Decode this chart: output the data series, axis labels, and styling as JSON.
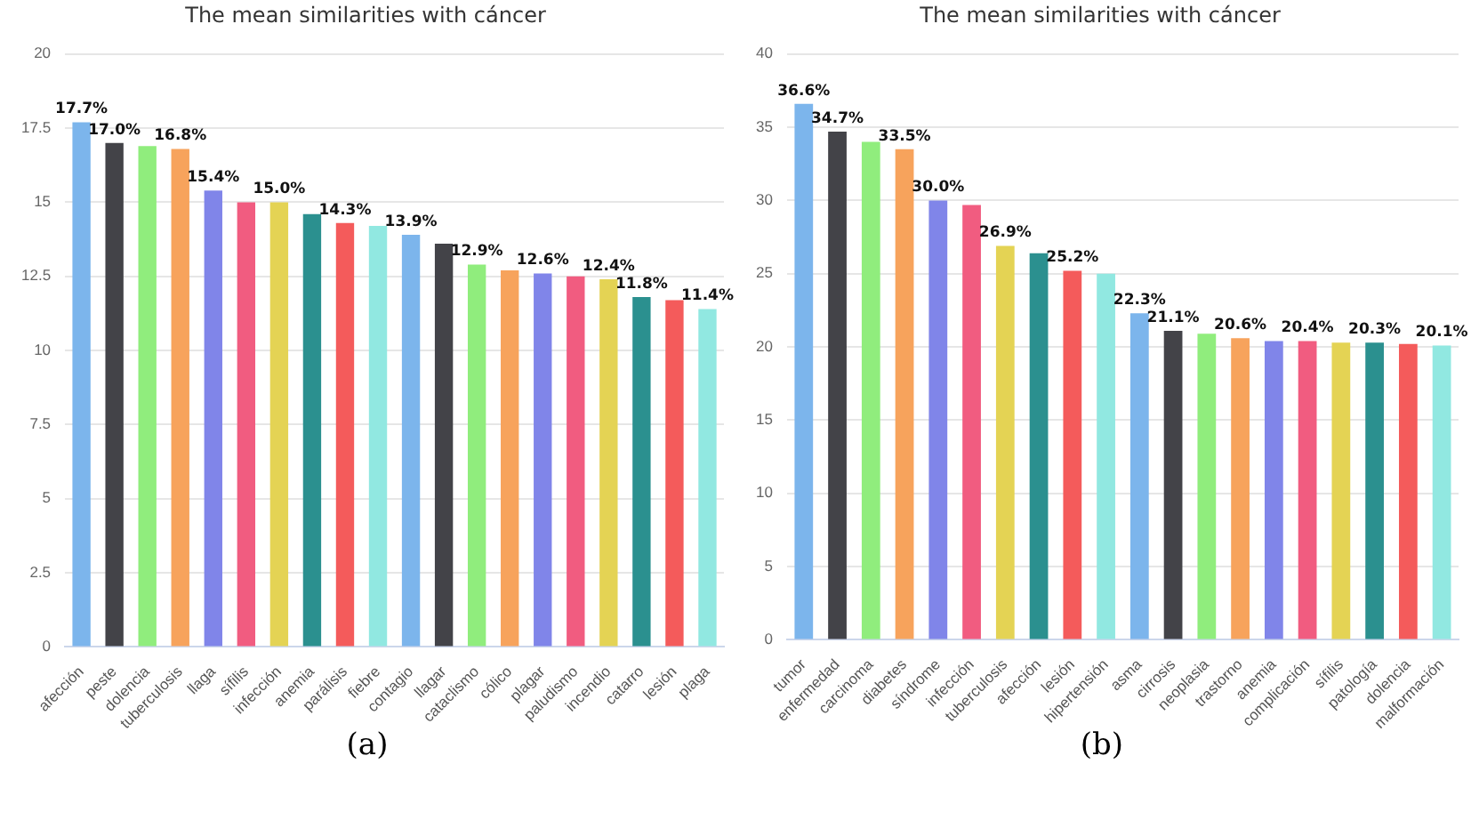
{
  "chart_data": [
    {
      "type": "bar",
      "title": "The mean similarities with cáncer",
      "categories": [
        "afección",
        "peste",
        "dolencia",
        "tuberculosis",
        "llaga",
        "sífilis",
        "infección",
        "anemia",
        "parálisis",
        "fiebre",
        "contagio",
        "llagar",
        "cataclismo",
        "cólico",
        "plagar",
        "paludismo",
        "incendio",
        "catarro",
        "lesión",
        "plaga"
      ],
      "values": [
        17.7,
        17.0,
        16.9,
        16.8,
        15.4,
        15.0,
        15.0,
        14.6,
        14.3,
        14.2,
        13.9,
        13.6,
        12.9,
        12.7,
        12.6,
        12.5,
        12.4,
        11.8,
        11.7,
        11.4
      ],
      "colors": [
        "#7cb5ec",
        "#434348",
        "#90ed7d",
        "#f7a35c",
        "#8085e9",
        "#f15c80",
        "#e4d354",
        "#2b908f",
        "#f45b5b",
        "#91e8e1",
        "#7cb5ec",
        "#434348",
        "#90ed7d",
        "#f7a35c",
        "#8085e9",
        "#f15c80",
        "#e4d354",
        "#2b908f",
        "#f45b5b",
        "#91e8e1"
      ],
      "value_labels": [
        "17.7%",
        "17.0%",
        null,
        "16.8%",
        "15.4%",
        null,
        "15.0%",
        null,
        "14.3%",
        null,
        "13.9%",
        null,
        "12.9%",
        null,
        "12.6%",
        null,
        "12.4%",
        "11.8%",
        null,
        "11.4%"
      ],
      "ylim": [
        0,
        20
      ],
      "yticks": [
        0,
        2.5,
        5,
        7.5,
        10,
        12.5,
        15,
        17.5,
        20
      ],
      "grid": "y",
      "legend": false,
      "annotations": [
        "(a)"
      ]
    },
    {
      "type": "bar",
      "title": "The mean similarities with cáncer",
      "categories": [
        "tumor",
        "enfermedad",
        "carcinoma",
        "diabetes",
        "síndrome",
        "infección",
        "tuberculosis",
        "afección",
        "lesión",
        "hipertensión",
        "asma",
        "cirrosis",
        "neoplasia",
        "trastorno",
        "anemia",
        "complicación",
        "sífilis",
        "patología",
        "dolencia",
        "malformación"
      ],
      "values": [
        36.6,
        34.7,
        34.0,
        33.5,
        30.0,
        29.7,
        26.9,
        26.4,
        25.2,
        25.0,
        22.3,
        21.1,
        20.9,
        20.6,
        20.4,
        20.4,
        20.3,
        20.3,
        20.2,
        20.1
      ],
      "colors": [
        "#7cb5ec",
        "#434348",
        "#90ed7d",
        "#f7a35c",
        "#8085e9",
        "#f15c80",
        "#e4d354",
        "#2b908f",
        "#f45b5b",
        "#91e8e1",
        "#7cb5ec",
        "#434348",
        "#90ed7d",
        "#f7a35c",
        "#8085e9",
        "#f15c80",
        "#e4d354",
        "#2b908f",
        "#f45b5b",
        "#91e8e1"
      ],
      "value_labels": [
        "36.6%",
        "34.7%",
        null,
        "33.5%",
        "30.0%",
        null,
        "26.9%",
        null,
        "25.2%",
        null,
        "22.3%",
        "21.1%",
        null,
        "20.6%",
        null,
        "20.4%",
        null,
        "20.3%",
        null,
        "20.1%"
      ],
      "ylim": [
        0,
        40
      ],
      "yticks": [
        0,
        5,
        10,
        15,
        20,
        25,
        30,
        35,
        40
      ],
      "grid": "y",
      "legend": false,
      "annotations": [
        "(b)"
      ]
    }
  ]
}
